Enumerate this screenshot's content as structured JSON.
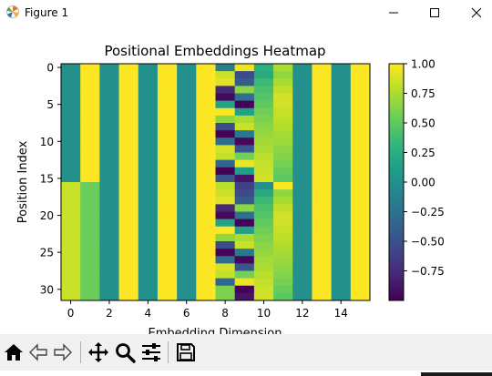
{
  "window": {
    "title": "Figure 1"
  },
  "toolbar": {
    "buttons": [
      {
        "name": "home-icon"
      },
      {
        "name": "back-arrow-icon"
      },
      {
        "name": "forward-arrow-icon"
      },
      {
        "name": "pan-move-icon"
      },
      {
        "name": "zoom-magnifier-icon"
      },
      {
        "name": "configure-subplots-icon"
      },
      {
        "name": "save-floppy-icon"
      }
    ]
  },
  "colors": {
    "viridis": [
      "#440154",
      "#482878",
      "#3e4989",
      "#31688e",
      "#26828e",
      "#1f9e89",
      "#35b779",
      "#6ece58",
      "#b5de2b",
      "#fde725"
    ]
  },
  "chart_data": {
    "type": "heatmap",
    "title": "Positional Embeddings Heatmap",
    "xlabel": "Embedding Dimension",
    "ylabel": "Position Index",
    "x_ticks": [
      0,
      2,
      4,
      6,
      8,
      10,
      12,
      14
    ],
    "y_ticks": [
      0,
      5,
      10,
      15,
      20,
      25,
      30
    ],
    "rows": 32,
    "cols": 16,
    "colorbar": {
      "vmin": -1.0,
      "vmax": 1.0,
      "ticks": [
        1.0,
        0.75,
        0.5,
        0.25,
        0.0,
        -0.25,
        -0.5,
        -0.75
      ],
      "tick_labels": [
        "1.00",
        "0.75",
        "0.50",
        "0.25",
        "0.00",
        "−0.25",
        "−0.50",
        "−0.75"
      ]
    },
    "values": [
      [
        0.0,
        1.0,
        0.0,
        1.0,
        0.0,
        1.0,
        0.0,
        1.0,
        -0.13,
        0.95,
        0.26,
        0.75,
        0.0,
        1.0,
        0.0,
        1.0
      ],
      [
        0.0,
        1.0,
        0.0,
        1.0,
        0.0,
        1.0,
        0.0,
        1.0,
        0.84,
        -0.54,
        0.21,
        0.66,
        0.0,
        1.0,
        0.0,
        1.0
      ],
      [
        0.0,
        1.0,
        0.0,
        1.0,
        0.0,
        1.0,
        0.0,
        1.0,
        0.91,
        -0.42,
        0.36,
        0.74,
        0.0,
        1.0,
        0.0,
        1.0
      ],
      [
        0.0,
        1.0,
        0.0,
        1.0,
        0.0,
        1.0,
        0.0,
        1.0,
        -0.76,
        0.65,
        0.42,
        0.81,
        0.0,
        1.0,
        0.0,
        1.0
      ],
      [
        0.0,
        1.0,
        0.0,
        1.0,
        0.0,
        1.0,
        0.0,
        1.0,
        -0.96,
        -0.28,
        0.46,
        0.87,
        0.0,
        1.0,
        0.0,
        1.0
      ],
      [
        0.0,
        1.0,
        0.0,
        1.0,
        0.0,
        1.0,
        0.0,
        1.0,
        0.15,
        -0.99,
        0.51,
        0.86,
        0.0,
        1.0,
        0.0,
        1.0
      ],
      [
        0.0,
        1.0,
        0.0,
        1.0,
        0.0,
        1.0,
        0.0,
        1.0,
        0.99,
        0.14,
        0.56,
        0.83,
        0.0,
        1.0,
        0.0,
        1.0
      ],
      [
        0.0,
        1.0,
        0.0,
        1.0,
        0.0,
        1.0,
        0.0,
        1.0,
        0.66,
        0.75,
        0.6,
        0.8,
        0.0,
        1.0,
        0.0,
        1.0
      ],
      [
        0.0,
        1.0,
        0.0,
        1.0,
        0.0,
        1.0,
        0.0,
        1.0,
        -0.55,
        0.84,
        0.64,
        0.77,
        0.0,
        1.0,
        0.0,
        1.0
      ],
      [
        0.0,
        1.0,
        0.0,
        1.0,
        0.0,
        1.0,
        0.0,
        1.0,
        -0.98,
        -0.2,
        0.68,
        0.73,
        0.0,
        1.0,
        0.0,
        1.0
      ],
      [
        0.0,
        1.0,
        0.0,
        1.0,
        0.0,
        1.0,
        0.0,
        1.0,
        -0.29,
        -0.96,
        0.72,
        0.7,
        0.0,
        1.0,
        0.0,
        1.0
      ],
      [
        0.0,
        1.0,
        0.0,
        1.0,
        0.0,
        1.0,
        0.0,
        1.0,
        0.88,
        -0.47,
        0.75,
        0.66,
        0.0,
        1.0,
        0.0,
        1.0
      ],
      [
        0.0,
        1.0,
        0.0,
        1.0,
        0.0,
        1.0,
        0.0,
        1.0,
        0.82,
        0.57,
        0.79,
        0.62,
        0.0,
        1.0,
        0.0,
        1.0
      ],
      [
        0.0,
        1.0,
        0.0,
        1.0,
        0.0,
        1.0,
        0.0,
        1.0,
        -0.34,
        0.94,
        0.82,
        0.58,
        0.0,
        1.0,
        0.0,
        1.0
      ],
      [
        0.0,
        1.0,
        0.0,
        1.0,
        0.0,
        1.0,
        0.0,
        1.0,
        -0.99,
        0.12,
        0.85,
        0.53,
        0.0,
        1.0,
        0.0,
        1.0
      ],
      [
        0.0,
        1.0,
        0.0,
        1.0,
        0.0,
        1.0,
        0.0,
        1.0,
        -0.46,
        -0.89,
        0.87,
        0.49,
        0.0,
        1.0,
        0.0,
        1.0
      ],
      [
        0.84,
        0.54,
        0.0,
        1.0,
        0.0,
        1.0,
        0.0,
        1.0,
        0.79,
        -0.61,
        0.0,
        1.0,
        0.0,
        1.0,
        0.0,
        1.0
      ],
      [
        0.84,
        0.54,
        0.0,
        1.0,
        0.0,
        1.0,
        0.0,
        1.0,
        0.84,
        -0.54,
        0.21,
        0.66,
        0.0,
        1.0,
        0.0,
        1.0
      ],
      [
        0.84,
        0.54,
        0.0,
        1.0,
        0.0,
        1.0,
        0.0,
        1.0,
        0.91,
        -0.42,
        0.36,
        0.74,
        0.0,
        1.0,
        0.0,
        1.0
      ],
      [
        0.84,
        0.54,
        0.0,
        1.0,
        0.0,
        1.0,
        0.0,
        1.0,
        -0.76,
        0.65,
        0.42,
        0.81,
        0.0,
        1.0,
        0.0,
        1.0
      ],
      [
        0.84,
        0.54,
        0.0,
        1.0,
        0.0,
        1.0,
        0.0,
        1.0,
        -0.96,
        -0.28,
        0.46,
        0.87,
        0.0,
        1.0,
        0.0,
        1.0
      ],
      [
        0.84,
        0.54,
        0.0,
        1.0,
        0.0,
        1.0,
        0.0,
        1.0,
        0.15,
        -0.99,
        0.51,
        0.86,
        0.0,
        1.0,
        0.0,
        1.0
      ],
      [
        0.84,
        0.54,
        0.0,
        1.0,
        0.0,
        1.0,
        0.0,
        1.0,
        0.99,
        0.14,
        0.56,
        0.83,
        0.0,
        1.0,
        0.0,
        1.0
      ],
      [
        0.84,
        0.54,
        0.0,
        1.0,
        0.0,
        1.0,
        0.0,
        1.0,
        0.66,
        0.75,
        0.6,
        0.8,
        0.0,
        1.0,
        0.0,
        1.0
      ],
      [
        0.84,
        0.54,
        0.0,
        1.0,
        0.0,
        1.0,
        0.0,
        1.0,
        -0.55,
        0.84,
        0.64,
        0.77,
        0.0,
        1.0,
        0.0,
        1.0
      ],
      [
        0.84,
        0.54,
        0.0,
        1.0,
        0.0,
        1.0,
        0.0,
        1.0,
        -0.98,
        -0.2,
        0.68,
        0.73,
        0.0,
        1.0,
        0.0,
        1.0
      ],
      [
        0.84,
        0.54,
        0.0,
        1.0,
        0.0,
        1.0,
        0.0,
        1.0,
        -0.29,
        -0.96,
        0.72,
        0.7,
        0.0,
        1.0,
        0.0,
        1.0
      ],
      [
        0.84,
        0.54,
        0.0,
        1.0,
        0.0,
        1.0,
        0.0,
        1.0,
        0.88,
        -0.47,
        0.75,
        0.66,
        0.0,
        1.0,
        0.0,
        1.0
      ],
      [
        0.84,
        0.54,
        0.0,
        1.0,
        0.0,
        1.0,
        0.0,
        1.0,
        0.82,
        0.57,
        0.79,
        0.62,
        0.0,
        1.0,
        0.0,
        1.0
      ],
      [
        0.84,
        0.54,
        0.0,
        1.0,
        0.0,
        1.0,
        0.0,
        1.0,
        -0.34,
        0.94,
        0.82,
        0.58,
        0.0,
        1.0,
        0.0,
        1.0
      ],
      [
        0.84,
        0.54,
        0.0,
        1.0,
        0.0,
        1.0,
        0.0,
        1.0,
        0.6,
        -0.99,
        0.85,
        0.53,
        0.0,
        1.0,
        0.0,
        1.0
      ],
      [
        0.84,
        0.54,
        0.0,
        1.0,
        0.0,
        1.0,
        0.0,
        1.0,
        0.6,
        -0.89,
        0.87,
        0.49,
        0.0,
        1.0,
        0.0,
        1.0
      ]
    ]
  }
}
